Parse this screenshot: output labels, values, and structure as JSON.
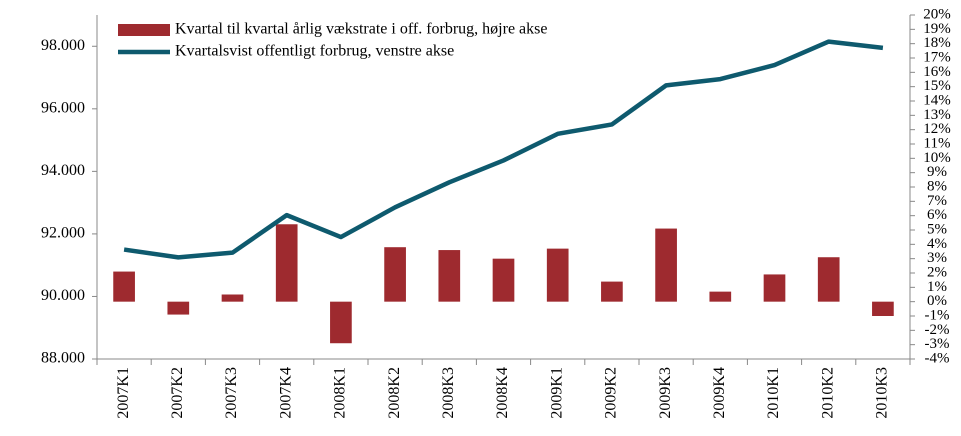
{
  "chart_data": {
    "type": "bar_line",
    "categories": [
      "2007K1",
      "2007K2",
      "2007K3",
      "2007K4",
      "2008K1",
      "2008K2",
      "2008K3",
      "2008K4",
      "2009K1",
      "2009K2",
      "2009K3",
      "2009K4",
      "2010K1",
      "2010K2",
      "2010K3"
    ],
    "series": [
      {
        "name": "Kvartal til kvartal årlig vækstrate i off. forbrug, højre akse",
        "type": "bar",
        "axis": "y2",
        "color": "#9e2a2f",
        "values": [
          2.1,
          -0.9,
          0.5,
          5.4,
          -2.9,
          3.8,
          3.6,
          3.0,
          3.7,
          1.4,
          5.1,
          0.7,
          1.9,
          3.1,
          -1.0
        ]
      },
      {
        "name": "Kvartalsvist offentligt forbrug, venstre akse",
        "type": "line",
        "axis": "y",
        "color": "#0e5a6e",
        "values": [
          91500,
          91250,
          91400,
          92600,
          91900,
          92850,
          93650,
          94350,
          95200,
          95500,
          96750,
          96950,
          97400,
          98150,
          97950
        ]
      }
    ],
    "ylim": [
      88000,
      99000
    ],
    "yticks": [
      {
        "value": 88000,
        "label": "88.000"
      },
      {
        "value": 90000,
        "label": "90.000"
      },
      {
        "value": 92000,
        "label": "92.000"
      },
      {
        "value": 94000,
        "label": "94.000"
      },
      {
        "value": 96000,
        "label": "96.000"
      },
      {
        "value": 98000,
        "label": "98.000"
      }
    ],
    "y2lim": [
      -4,
      20
    ],
    "y2ticks": [
      {
        "value": -4,
        "label": "-4%"
      },
      {
        "value": -3,
        "label": "-3%"
      },
      {
        "value": -2,
        "label": "-2%"
      },
      {
        "value": -1,
        "label": "-1%"
      },
      {
        "value": 0,
        "label": "0%"
      },
      {
        "value": 1,
        "label": "1%"
      },
      {
        "value": 2,
        "label": "2%"
      },
      {
        "value": 3,
        "label": "3%"
      },
      {
        "value": 4,
        "label": "4%"
      },
      {
        "value": 5,
        "label": "5%"
      },
      {
        "value": 6,
        "label": "6%"
      },
      {
        "value": 7,
        "label": "7%"
      },
      {
        "value": 8,
        "label": "8%"
      },
      {
        "value": 9,
        "label": "9%"
      },
      {
        "value": 10,
        "label": "10%"
      },
      {
        "value": 11,
        "label": "11%"
      },
      {
        "value": 12,
        "label": "12%"
      },
      {
        "value": 13,
        "label": "13%"
      },
      {
        "value": 14,
        "label": "14%"
      },
      {
        "value": 15,
        "label": "15%"
      },
      {
        "value": 16,
        "label": "16%"
      },
      {
        "value": 17,
        "label": "17%"
      },
      {
        "value": 18,
        "label": "18%"
      },
      {
        "value": 19,
        "label": "19%"
      },
      {
        "value": 20,
        "label": "20%"
      }
    ],
    "legend": "top-left",
    "grid": false
  }
}
